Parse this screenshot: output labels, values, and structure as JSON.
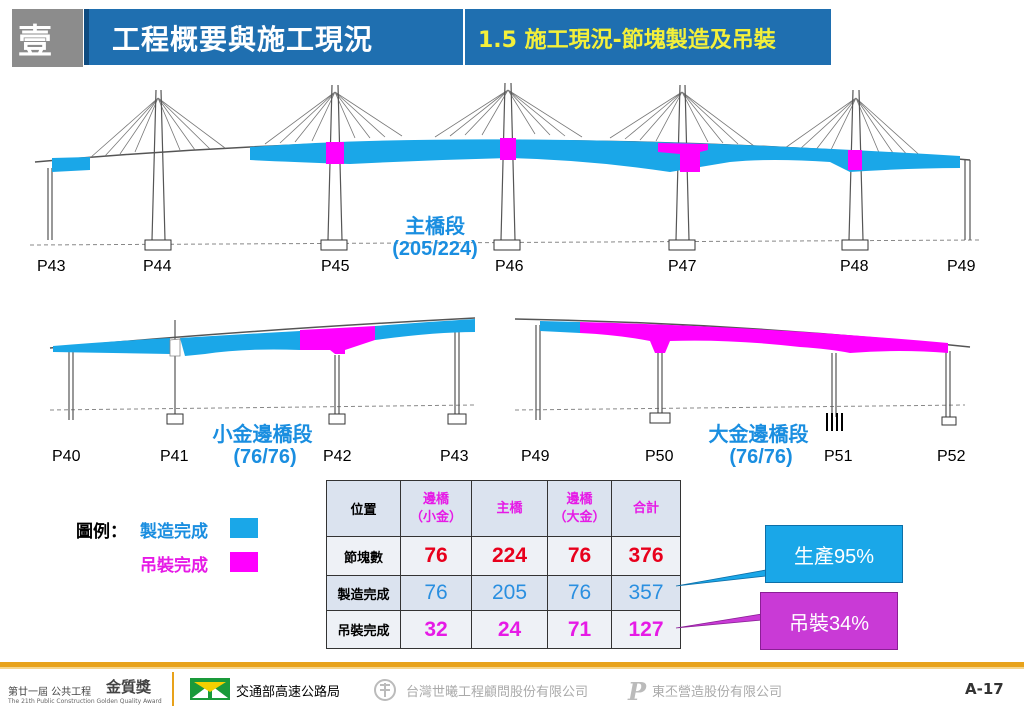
{
  "header": {
    "chapter_number": "壹",
    "title": "工程概要與施工現況",
    "subtitle": "1.5 施工現況-節塊製造及吊裝"
  },
  "diagram_main": {
    "piers": [
      "P43",
      "P44",
      "P45",
      "P46",
      "P47",
      "P48",
      "P49"
    ],
    "segment_label": "主橋段",
    "segment_count": "(205/224)"
  },
  "diagram_left": {
    "piers": [
      "P40",
      "P41",
      "P42",
      "P43"
    ],
    "segment_label": "小金邊橋段",
    "segment_count": "(76/76)"
  },
  "diagram_right": {
    "piers": [
      "P49",
      "P50",
      "P51",
      "P52"
    ],
    "segment_label": "大金邊橋段",
    "segment_count": "(76/76)"
  },
  "legend": {
    "title": "圖例：",
    "fabricated": "製造完成",
    "lifted": "吊裝完成",
    "fabricated_color": "#1aa7e8",
    "lifted_color": "#ff00ff"
  },
  "table": {
    "header_position": "位置",
    "columns": [
      {
        "line1": "邊橋",
        "line2": "（小金）"
      },
      {
        "line1": "主橋",
        "line2": ""
      },
      {
        "line1": "邊橋",
        "line2": "（大金）"
      },
      {
        "line1": "合計",
        "line2": ""
      }
    ],
    "rows": [
      {
        "label": "節塊數",
        "values": [
          "76",
          "224",
          "76",
          "376"
        ]
      },
      {
        "label": "製造完成",
        "values": [
          "76",
          "205",
          "76",
          "357"
        ]
      },
      {
        "label": "吊裝完成",
        "values": [
          "32",
          "24",
          "71",
          "127"
        ]
      }
    ]
  },
  "callouts": {
    "production": "生產95%",
    "lifting": "吊裝34%"
  },
  "footer": {
    "award_small": "第廿一屆 公共工程",
    "award_big": "金質獎",
    "award_en": "The 21th Public Construction Golden Quality Award",
    "agency1": "交通部高速公路局",
    "agency2": "台灣世曦工程顧問股份有限公司",
    "agency3": "東丕營造股份有限公司",
    "page_number": "A-17"
  }
}
